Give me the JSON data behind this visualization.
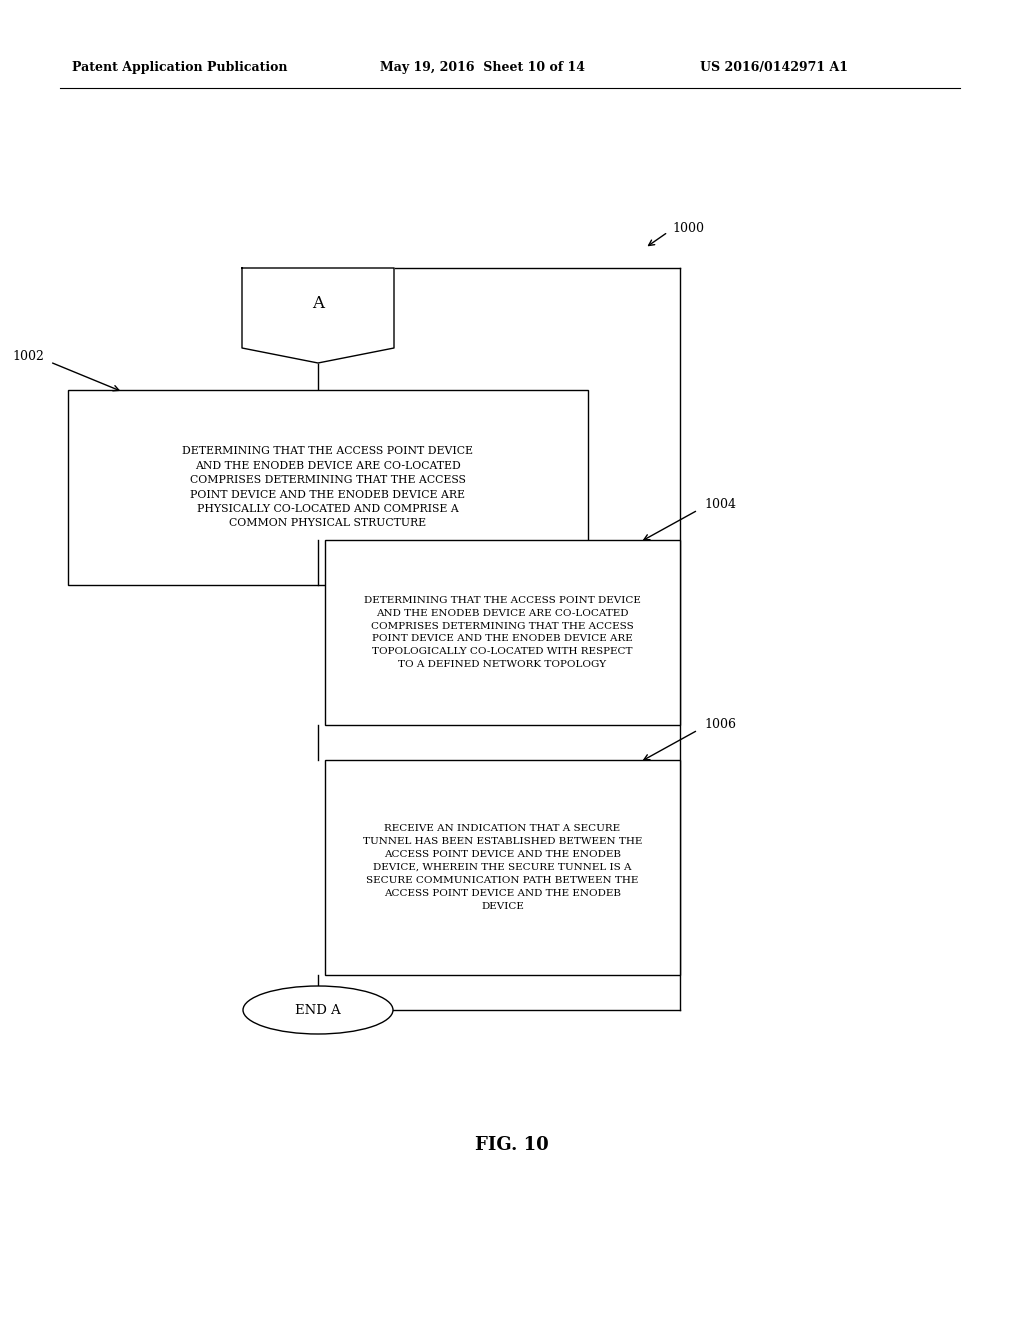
{
  "bg_color": "#ffffff",
  "header_left": "Patent Application Publication",
  "header_center": "May 19, 2016  Sheet 10 of 14",
  "header_right": "US 2016/0142971 A1",
  "fig_label": "FIG. 10",
  "diagram_label": "1000",
  "connector_label": "A",
  "box1_label": "1002",
  "box1_text": "DETERMINING THAT THE ACCESS POINT DEVICE\nAND THE ENODEB DEVICE ARE CO-LOCATED\nCOMPRISES DETERMINING THAT THE ACCESS\nPOINT DEVICE AND THE ENODEB DEVICE ARE\nPHYSICALLY CO-LOCATED AND COMPRISE A\nCOMMON PHYSICAL STRUCTURE",
  "box2_label": "1004",
  "box2_text": "DETERMINING THAT THE ACCESS POINT DEVICE\nAND THE ENODEB DEVICE ARE CO-LOCATED\nCOMPRISES DETERMINING THAT THE ACCESS\nPOINT DEVICE AND THE ENODEB DEVICE ARE\nTOPOLOGICALLY CO-LOCATED WITH RESPECT\nTO A DEFINED NETWORK TOPOLOGY",
  "box3_label": "1006",
  "box3_text": "RECEIVE AN INDICATION THAT A SECURE\nTUNNEL HAS BEEN ESTABLISHED BETWEEN THE\nACCESS POINT DEVICE AND THE ENODEB\nDEVICE, WHEREIN THE SECURE TUNNEL IS A\nSECURE COMMUNICATION PATH BETWEEN THE\nACCESS POINT DEVICE AND THE ENODEB\nDEVICE",
  "end_label": "END A"
}
